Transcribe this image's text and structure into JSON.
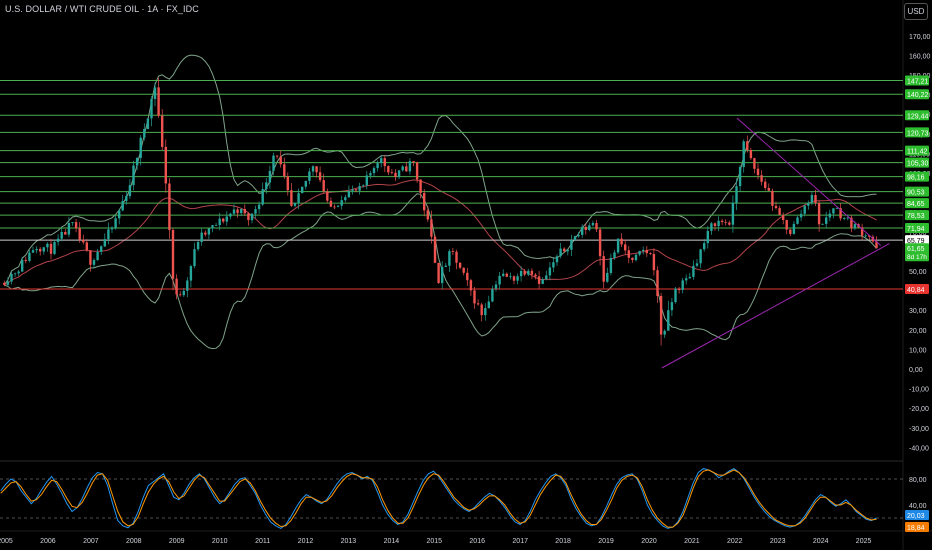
{
  "header": {
    "symbol_title": "U.S. DOLLAR / WTI CRUDE OIL · 1A · FX_IDC",
    "currency_button": "USD"
  },
  "colors": {
    "background": "#000000",
    "up_candle": "#26a69a",
    "down_candle": "#ef5350",
    "horizontal_level": "#4caf50",
    "support_level": "#e53935",
    "bollinger_band": "#7fa38a",
    "moving_average": "#b2434b",
    "trendline": "#9c27b0",
    "stoch_k": "#2196f3",
    "stoch_d": "#ff9800",
    "price_label_green": "#2ebd2e",
    "price_label_red": "#e8332e",
    "price_label_white": "#ffffff",
    "price_label_blue": "#1e88e5",
    "price_label_orange": "#f57c00",
    "axis_text": "#d1d4dc"
  },
  "chart_data": [
    {
      "type": "candlestick",
      "title": "U.S. DOLLAR / WTI CRUDE OIL · 1A · FX_IDC",
      "grid": false,
      "currency": "USD",
      "x_ticks": [
        "2005",
        "2006",
        "2007",
        "2008",
        "2009",
        "2010",
        "2011",
        "2012",
        "2013",
        "2014",
        "2015",
        "2016",
        "2017",
        "2018",
        "2019",
        "2020",
        "2021",
        "2022",
        "2023",
        "2024",
        "2025"
      ],
      "y_ticks": [
        "170,00",
        "160,00",
        "150,00",
        "140,00",
        "130,00",
        "120,00",
        "110,00",
        "100,00",
        "90,00",
        "80,00",
        "70,00",
        "60,00",
        "50,00",
        "40,00",
        "30,00",
        "20,00",
        "10,00",
        "0,00",
        "-10,00",
        "-20,00",
        "-30,00",
        "-40,00"
      ],
      "ylim": [
        -43,
        175
      ],
      "price_points": [
        [
          2004.9,
          44
        ],
        [
          2005.3,
          51
        ],
        [
          2005.7,
          63
        ],
        [
          2006.1,
          61
        ],
        [
          2006.55,
          74
        ],
        [
          2007.0,
          55
        ],
        [
          2007.5,
          72
        ],
        [
          2007.9,
          94
        ],
        [
          2008.5,
          145
        ],
        [
          2008.75,
          95
        ],
        [
          2008.95,
          35
        ],
        [
          2009.2,
          43
        ],
        [
          2009.5,
          66
        ],
        [
          2010.0,
          75
        ],
        [
          2010.4,
          82
        ],
        [
          2010.7,
          76
        ],
        [
          2011.0,
          90
        ],
        [
          2011.3,
          113
        ],
        [
          2011.7,
          80
        ],
        [
          2012.2,
          106
        ],
        [
          2012.6,
          80
        ],
        [
          2012.9,
          90
        ],
        [
          2013.3,
          91
        ],
        [
          2013.7,
          108
        ],
        [
          2014.1,
          98
        ],
        [
          2014.5,
          106
        ],
        [
          2014.9,
          70
        ],
        [
          2015.1,
          46
        ],
        [
          2015.4,
          60
        ],
        [
          2015.8,
          42
        ],
        [
          2016.1,
          28
        ],
        [
          2016.5,
          48
        ],
        [
          2016.8,
          46
        ],
        [
          2017.2,
          52
        ],
        [
          2017.5,
          44
        ],
        [
          2017.9,
          58
        ],
        [
          2018.3,
          68
        ],
        [
          2018.75,
          76
        ],
        [
          2018.95,
          46
        ],
        [
          2019.3,
          66
        ],
        [
          2019.6,
          54
        ],
        [
          2019.9,
          61
        ],
        [
          2020.1,
          56
        ],
        [
          2020.3,
          15
        ],
        [
          2020.6,
          40
        ],
        [
          2020.9,
          46
        ],
        [
          2021.2,
          60
        ],
        [
          2021.5,
          75
        ],
        [
          2021.9,
          75
        ],
        [
          2022.2,
          115
        ],
        [
          2022.5,
          100
        ],
        [
          2022.8,
          90
        ],
        [
          2022.95,
          80
        ],
        [
          2023.3,
          70
        ],
        [
          2023.6,
          82
        ],
        [
          2023.8,
          90
        ],
        [
          2024.0,
          72
        ],
        [
          2024.3,
          83
        ],
        [
          2024.6,
          76
        ],
        [
          2024.9,
          71
        ],
        [
          2025.15,
          68
        ],
        [
          2025.3,
          61.65
        ]
      ],
      "horizontal_levels": [
        147.21,
        140.22,
        129.44,
        120.73,
        111.42,
        105.3,
        98.16,
        90.53,
        84.65,
        78.53,
        71.94,
        65.79
      ],
      "support_level": 40.84,
      "current_price": 61.65,
      "current_price_countdown": "8d 17h",
      "price_labels": [
        {
          "text": "147,21",
          "value": 147.21,
          "style": "green"
        },
        {
          "text": "140,22",
          "value": 140.22,
          "style": "green"
        },
        {
          "text": "129,44",
          "value": 129.44,
          "style": "green"
        },
        {
          "text": "120,73",
          "value": 120.73,
          "style": "green"
        },
        {
          "text": "111,42",
          "value": 111.42,
          "style": "green"
        },
        {
          "text": "105,30",
          "value": 105.3,
          "style": "green"
        },
        {
          "text": "98,16",
          "value": 98.16,
          "style": "green"
        },
        {
          "text": "90,53",
          "value": 90.53,
          "style": "green"
        },
        {
          "text": "84,65",
          "value": 84.65,
          "style": "green"
        },
        {
          "text": "78,53",
          "value": 78.53,
          "style": "green"
        },
        {
          "text": "71,94",
          "value": 71.94,
          "style": "green"
        },
        {
          "text": "65,79",
          "value": 65.79,
          "style": "white"
        },
        {
          "text": "61,65",
          "value": 61.65,
          "style": "green"
        },
        {
          "text": "40,84",
          "value": 40.84,
          "style": "red"
        }
      ],
      "trendlines": [
        {
          "from": [
            2020.3,
            0.5
          ],
          "to": [
            2025.6,
            64
          ]
        },
        {
          "from": [
            2022.05,
            128
          ],
          "to": [
            2025.4,
            63
          ]
        }
      ]
    },
    {
      "type": "line",
      "indicator": "stochastic",
      "y_ticks": [
        "80,00",
        "40,00"
      ],
      "ylim": [
        0,
        100
      ],
      "reference_levels": [
        80,
        20
      ],
      "series": [
        {
          "role": "k",
          "color": "#2196f3",
          "values": [
            62,
            72,
            80,
            76,
            62,
            52,
            42,
            50,
            63,
            75,
            84,
            72,
            58,
            42,
            30,
            36,
            50,
            67,
            82,
            90,
            88,
            70,
            42,
            16,
            8,
            5,
            12,
            30,
            52,
            70,
            76,
            82,
            88,
            70,
            52,
            48,
            58,
            72,
            82,
            88,
            80,
            66,
            52,
            42,
            48,
            60,
            72,
            80,
            82,
            70,
            58,
            40,
            26,
            14,
            8,
            4,
            10,
            22,
            36,
            48,
            56,
            52,
            46,
            42,
            48,
            60,
            72,
            82,
            88,
            90,
            86,
            80,
            84,
            78,
            60,
            40,
            26,
            16,
            10,
            14,
            26,
            44,
            62,
            78,
            88,
            92,
            84,
            72,
            60,
            48,
            40,
            34,
            30,
            36,
            44,
            52,
            58,
            54,
            46,
            36,
            24,
            14,
            10,
            16,
            30,
            48,
            62,
            74,
            84,
            88,
            82,
            70,
            50,
            34,
            22,
            12,
            8,
            10,
            22,
            38,
            56,
            72,
            82,
            86,
            88,
            80,
            62,
            40,
            26,
            16,
            8,
            4,
            6,
            14,
            30,
            52,
            74,
            90,
            96,
            94,
            90,
            82,
            86,
            92,
            96,
            90,
            80,
            66,
            52,
            40,
            30,
            22,
            16,
            12,
            8,
            6,
            8,
            14,
            24,
            36,
            48,
            56,
            52,
            44,
            38,
            42,
            48,
            40,
            30,
            24,
            18,
            16,
            20
          ]
        },
        {
          "role": "d",
          "color": "#ff9800",
          "values": [
            58,
            66,
            74,
            76,
            68,
            56,
            46,
            48,
            56,
            68,
            78,
            76,
            64,
            50,
            38,
            36,
            44,
            58,
            74,
            86,
            88,
            78,
            54,
            30,
            14,
            8,
            10,
            22,
            42,
            60,
            72,
            80,
            84,
            76,
            60,
            50,
            54,
            66,
            78,
            86,
            82,
            70,
            58,
            46,
            46,
            56,
            66,
            76,
            80,
            74,
            62,
            46,
            32,
            20,
            12,
            7,
            8,
            16,
            28,
            42,
            52,
            52,
            48,
            44,
            46,
            54,
            66,
            76,
            84,
            88,
            86,
            82,
            82,
            80,
            68,
            48,
            32,
            20,
            12,
            12,
            20,
            36,
            54,
            70,
            82,
            88,
            86,
            76,
            64,
            52,
            44,
            36,
            32,
            34,
            40,
            48,
            54,
            54,
            48,
            40,
            28,
            18,
            12,
            14,
            24,
            40,
            56,
            68,
            78,
            86,
            84,
            74,
            56,
            40,
            26,
            16,
            10,
            10,
            18,
            32,
            48,
            66,
            78,
            84,
            86,
            82,
            68,
            48,
            32,
            20,
            12,
            6,
            6,
            12,
            24,
            44,
            66,
            84,
            92,
            94,
            90,
            86,
            86,
            90,
            94,
            90,
            82,
            70,
            56,
            44,
            34,
            26,
            18,
            14,
            10,
            8,
            8,
            12,
            20,
            32,
            44,
            52,
            52,
            46,
            40,
            40,
            44,
            40,
            32,
            26,
            20,
            17,
            18
          ]
        }
      ],
      "value_labels": [
        {
          "text": "20,03",
          "value": 20.03,
          "style": "blue"
        },
        {
          "text": "18,84",
          "value": 18.84,
          "style": "orange"
        }
      ]
    }
  ]
}
